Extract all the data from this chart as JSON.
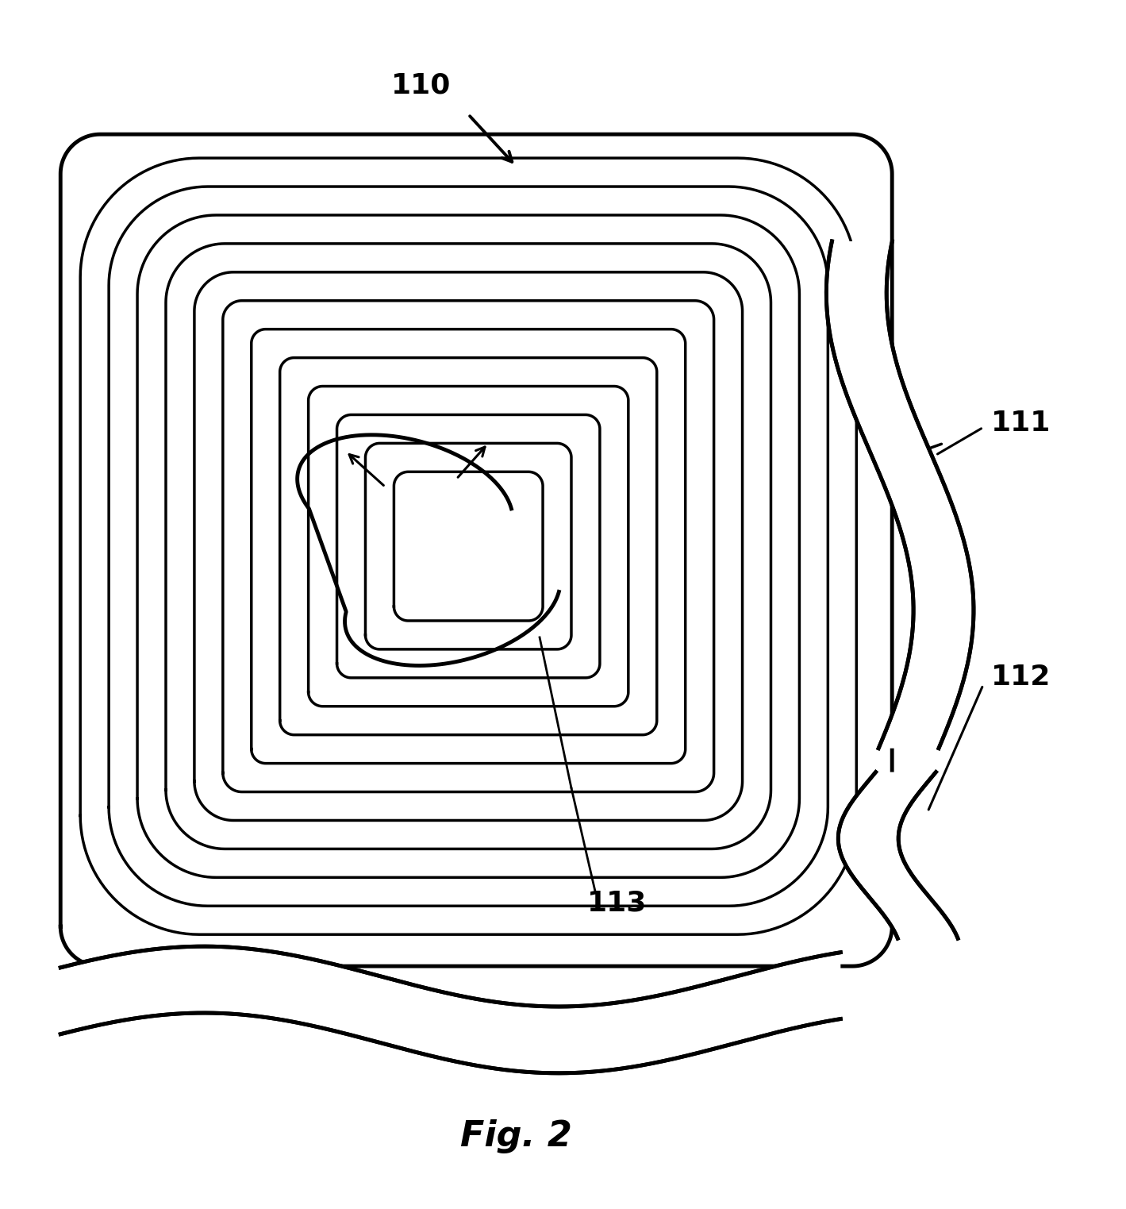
{
  "title": "Fig. 2",
  "title_fontsize": 32,
  "title_fontweight": "bold",
  "bg_color": "#ffffff",
  "line_color": "#000000",
  "label_110": "110",
  "label_111": "111",
  "label_112": "112",
  "label_113": "113",
  "label_fontsize": 26,
  "label_fontweight": "bold",
  "n_spiral_turns": 13,
  "spiral_linewidth": 2.5,
  "border_linewidth": 3.5
}
